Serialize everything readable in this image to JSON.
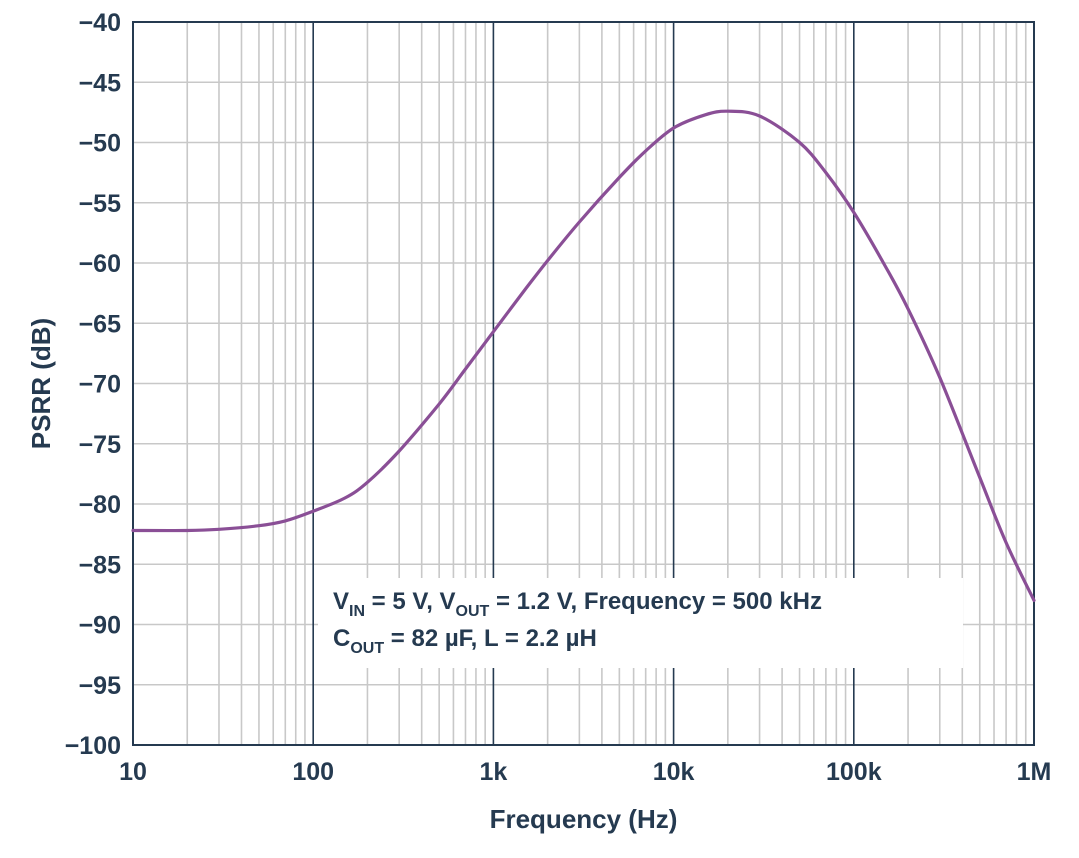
{
  "chart_data": {
    "type": "line",
    "title": "",
    "xlabel": "Frequency (Hz)",
    "ylabel": "PSRR (dB)",
    "xscale": "log",
    "xlim": [
      10,
      1000000
    ],
    "ylim": [
      -100,
      -40
    ],
    "x_tick_values": [
      10,
      100,
      1000,
      10000,
      100000,
      1000000
    ],
    "x_tick_labels": [
      "10",
      "100",
      "1k",
      "10k",
      "100k",
      "1M"
    ],
    "y_tick_values": [
      -40,
      -45,
      -50,
      -55,
      -60,
      -65,
      -70,
      -75,
      -80,
      -85,
      -90,
      -95,
      -100
    ],
    "y_tick_labels": [
      "−40",
      "−45",
      "−50",
      "−55",
      "−60",
      "−65",
      "−70",
      "−75",
      "−80",
      "−85",
      "−90",
      "−95",
      "−100"
    ],
    "grid": true,
    "line_color": "#8a4f96",
    "grid_color": "#c8c8c8",
    "series": [
      {
        "name": "PSRR",
        "x": [
          10,
          20,
          30,
          50,
          70,
          100,
          150,
          200,
          300,
          500,
          700,
          1000,
          1500,
          2000,
          3000,
          5000,
          7000,
          10000,
          15000,
          20000,
          30000,
          50000,
          70000,
          100000,
          150000,
          200000,
          300000,
          500000,
          700000,
          1000000
        ],
        "y": [
          -82.2,
          -82.2,
          -82.1,
          -81.8,
          -81.4,
          -80.6,
          -79.5,
          -78.2,
          -75.6,
          -71.7,
          -68.8,
          -65.7,
          -62.2,
          -59.8,
          -56.6,
          -52.9,
          -50.7,
          -48.8,
          -47.7,
          -47.4,
          -47.8,
          -50.0,
          -52.5,
          -55.8,
          -60.3,
          -63.8,
          -69.5,
          -77.8,
          -83.2,
          -88.0
        ]
      }
    ],
    "annotation": {
      "line1": [
        {
          "text": "V",
          "sub": false
        },
        {
          "text": "IN",
          "sub": true
        },
        {
          "text": " = 5 V, V",
          "sub": false
        },
        {
          "text": "OUT",
          "sub": true
        },
        {
          "text": " = 1.2 V, Frequency = 500 kHz",
          "sub": false
        }
      ],
      "line2": [
        {
          "text": "C",
          "sub": false
        },
        {
          "text": "OUT",
          "sub": true
        },
        {
          "text": " = 82 µF, L = 2.2 µH",
          "sub": false
        }
      ]
    }
  }
}
